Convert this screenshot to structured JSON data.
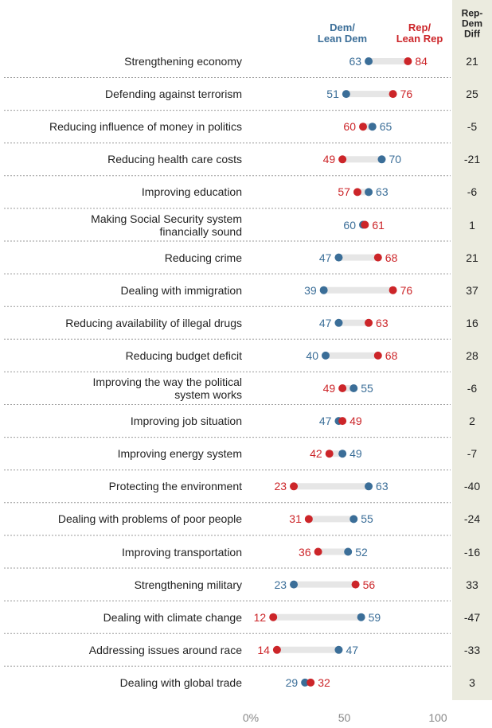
{
  "chart_data": {
    "type": "dot",
    "categories": [
      "Strengthening economy",
      "Defending against terrorism",
      "Reducing influence of money in politics",
      "Reducing health care costs",
      "Improving education",
      "Making Social Security system\nfinancially sound",
      "Reducing crime",
      "Dealing with immigration",
      "Reducing availability of illegal drugs",
      "Reducing budget deficit",
      "Improving the way the political\nsystem works",
      "Improving job situation",
      "Improving energy system",
      "Protecting the environment",
      "Dealing with problems of poor people",
      "Improving transportation",
      "Strengthening military",
      "Dealing with climate change",
      "Addressing issues around race",
      "Dealing with global trade"
    ],
    "series": [
      {
        "name": "Dem/\nLean Dem",
        "color": "#3b6e98",
        "values": [
          63,
          51,
          65,
          70,
          63,
          60,
          47,
          39,
          47,
          40,
          55,
          47,
          49,
          63,
          55,
          52,
          23,
          59,
          47,
          29
        ]
      },
      {
        "name": "Rep/\nLean Rep",
        "color": "#cc2529",
        "values": [
          84,
          76,
          60,
          49,
          57,
          61,
          68,
          76,
          63,
          68,
          49,
          49,
          42,
          23,
          31,
          36,
          56,
          12,
          14,
          32
        ]
      }
    ],
    "diff_header": "Rep-\nDem\nDiff",
    "diff": [
      21,
      25,
      -5,
      -21,
      -6,
      1,
      21,
      37,
      16,
      28,
      -6,
      2,
      -7,
      -40,
      -24,
      -16,
      33,
      -47,
      -33,
      3
    ],
    "xlim": [
      0,
      100
    ],
    "xticks": [
      {
        "value": 0,
        "label": "0%"
      },
      50,
      100
    ]
  }
}
